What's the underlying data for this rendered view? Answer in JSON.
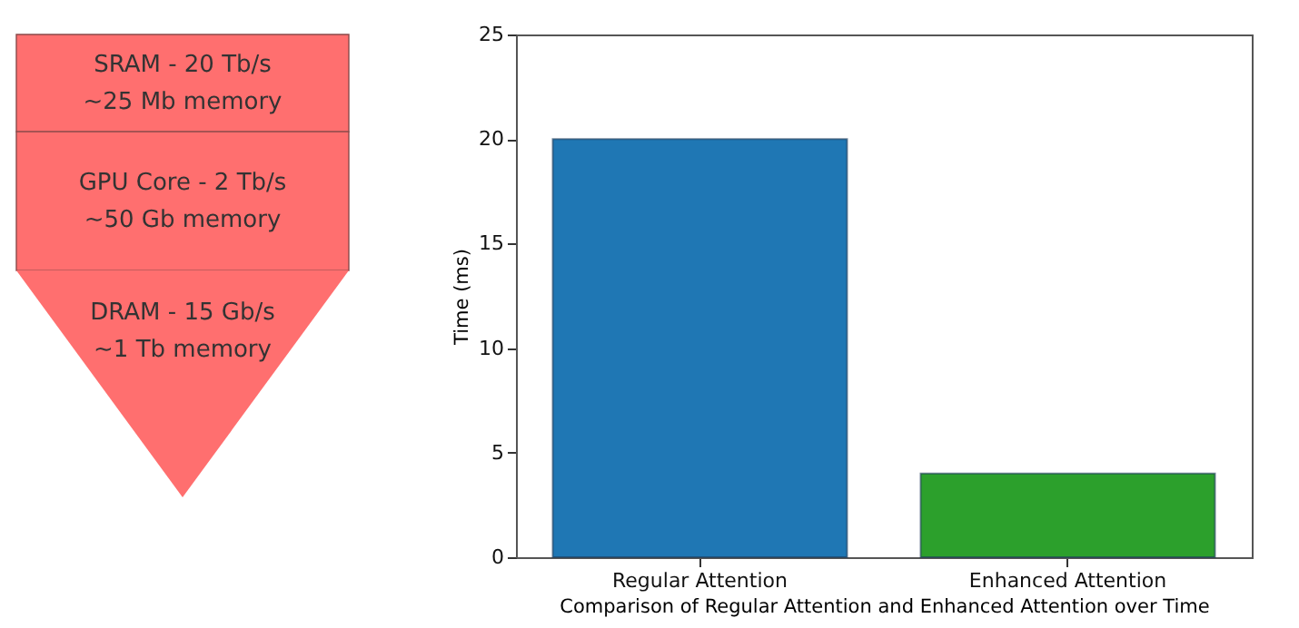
{
  "chart_data": [
    {
      "type": "other",
      "annotations": [
        "SRAM - 20 Tb/s",
        "~25 Mb memory",
        "GPU Core - 2 Tb/s",
        "~50 Gb memory",
        "DRAM - 15 Gb/s",
        "~1 Tb memory"
      ]
    },
    {
      "type": "bar",
      "categories": [
        "Regular Attention",
        "Enhanced Attention"
      ],
      "values": [
        20,
        4
      ],
      "colors": [
        "#1f77b4",
        "#2ca02c"
      ],
      "xlabel": "Comparison of Regular Attention and Enhanced Attention over Time",
      "ylabel": "Time (ms)",
      "ylim": [
        0,
        25
      ],
      "yticks": [
        0,
        5,
        10,
        15,
        20,
        25
      ],
      "grid": false
    }
  ]
}
